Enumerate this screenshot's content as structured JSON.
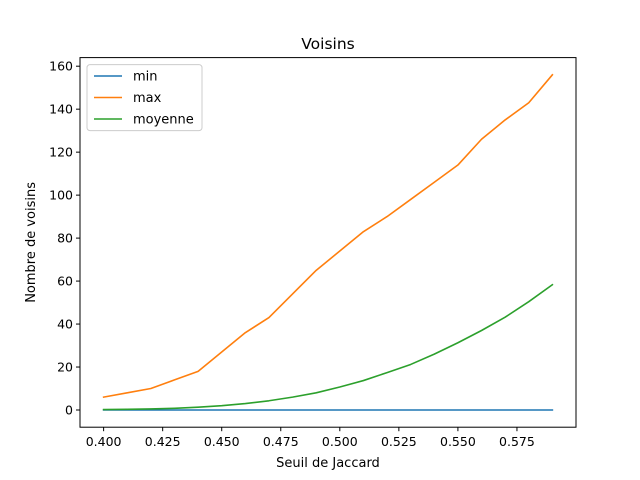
{
  "chart_data": {
    "type": "line",
    "title": "Voisins",
    "xlabel": "Seuil de Jaccard",
    "ylabel": "Nombre de voisins",
    "xlim": [
      0.39,
      0.6
    ],
    "ylim": [
      -8,
      164
    ],
    "xticks": [
      0.4,
      0.425,
      0.45,
      0.475,
      0.5,
      0.525,
      0.55,
      0.575
    ],
    "xtick_labels": [
      "0.400",
      "0.425",
      "0.450",
      "0.475",
      "0.500",
      "0.525",
      "0.550",
      "0.575"
    ],
    "yticks": [
      0,
      20,
      40,
      60,
      80,
      100,
      120,
      140,
      160
    ],
    "ytick_labels": [
      "0",
      "20",
      "40",
      "60",
      "80",
      "100",
      "120",
      "140",
      "160"
    ],
    "grid": false,
    "legend_position": "top-left",
    "x": [
      0.4,
      0.41,
      0.42,
      0.43,
      0.44,
      0.45,
      0.46,
      0.47,
      0.48,
      0.49,
      0.5,
      0.51,
      0.52,
      0.53,
      0.54,
      0.55,
      0.56,
      0.57,
      0.58,
      0.59
    ],
    "series": [
      {
        "name": "min",
        "color": "#1f77b4",
        "values": [
          0,
          0,
          0,
          0,
          0,
          0,
          0,
          0,
          0,
          0,
          0,
          0,
          0,
          0,
          0,
          0,
          0,
          0,
          0,
          0
        ]
      },
      {
        "name": "max",
        "color": "#ff7f0e",
        "values": [
          6,
          8,
          10,
          14,
          18,
          27,
          36,
          43,
          54,
          65,
          74,
          83,
          90,
          98,
          106,
          114,
          126,
          135,
          143,
          156
        ]
      },
      {
        "name": "moyenne",
        "color": "#2ca02c",
        "values": [
          0.2,
          0.3,
          0.5,
          0.8,
          1.3,
          2.0,
          3.0,
          4.3,
          6.0,
          8.0,
          10.7,
          13.7,
          17.4,
          21.2,
          26.0,
          31.3,
          37.0,
          43.2,
          50.4,
          58.3
        ]
      }
    ]
  }
}
